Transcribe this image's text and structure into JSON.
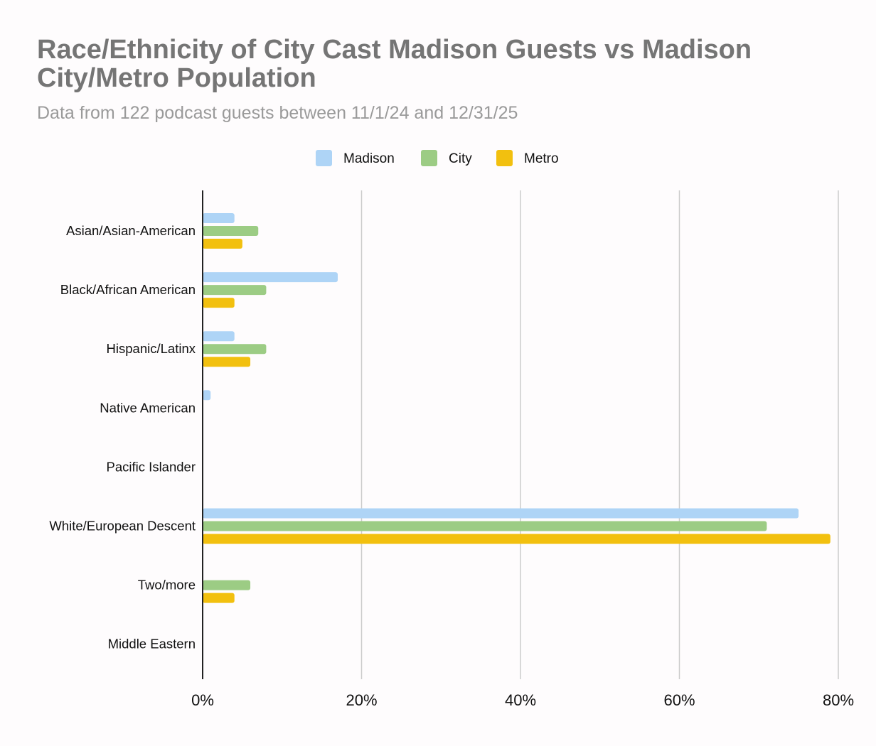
{
  "chart_data": {
    "type": "bar",
    "orientation": "horizontal",
    "title": "Race/Ethnicity of City Cast Madison Guests vs Madison City/Metro Population",
    "subtitle": "Data from 122 podcast guests between 11/1/24 and 12/31/25",
    "categories": [
      "Asian/Asian-American",
      "Black/African American",
      "Hispanic/Latinx",
      "Native American",
      "Pacific Islander",
      "White/European Descent",
      "Two/more",
      "Middle Eastern"
    ],
    "series": [
      {
        "name": "Madison",
        "color": "#aed4f6",
        "values": [
          4,
          17,
          4,
          1,
          0,
          75,
          0,
          0
        ]
      },
      {
        "name": "City",
        "color": "#9ccc84",
        "values": [
          7,
          8,
          8,
          0,
          0,
          71,
          6,
          0
        ]
      },
      {
        "name": "Metro",
        "color": "#f2c00f",
        "values": [
          5,
          4,
          6,
          0,
          0,
          79,
          4,
          0
        ]
      }
    ],
    "xlim": [
      0,
      80
    ],
    "xticks": [
      0,
      20,
      40,
      60,
      80
    ],
    "xtick_labels": [
      "0%",
      "20%",
      "40%",
      "60%",
      "80%"
    ],
    "xlabel": "",
    "ylabel": "",
    "grid": "vertical",
    "legend": "top-center"
  }
}
